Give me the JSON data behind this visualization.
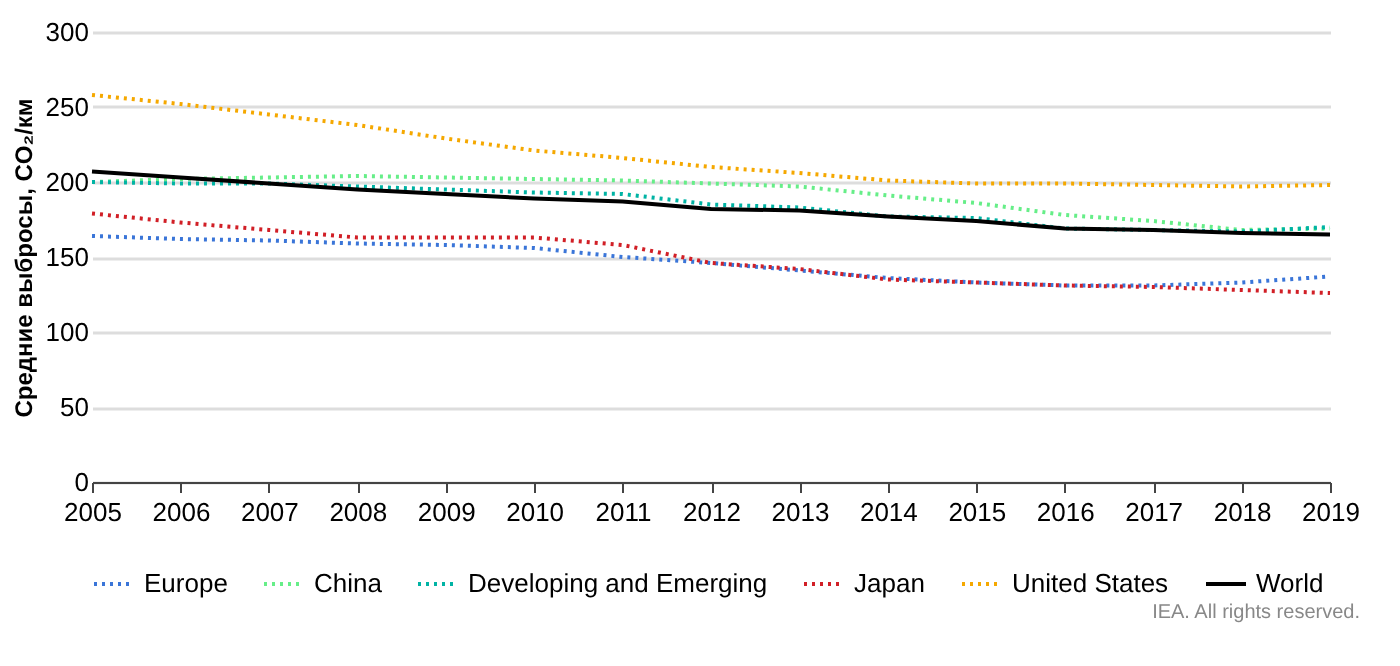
{
  "chart_data": {
    "type": "line",
    "ylabel": "Средние выбросы, CO₂/км",
    "x": [
      2005,
      2006,
      2007,
      2008,
      2009,
      2010,
      2011,
      2012,
      2013,
      2014,
      2015,
      2016,
      2017,
      2018,
      2019
    ],
    "series": [
      {
        "name": "Europe",
        "color": "#3a75d8",
        "line_style": "dotted",
        "values": [
          164,
          162,
          161,
          159,
          158,
          156,
          150,
          146,
          141,
          136,
          133,
          131,
          131,
          133,
          137
        ]
      },
      {
        "name": "China",
        "color": "#66ee88",
        "line_style": "dotted",
        "values": [
          200,
          202,
          203,
          204,
          203,
          202,
          201,
          199,
          197,
          191,
          186,
          178,
          174,
          168,
          169
        ]
      },
      {
        "name": "Developing and Emerging",
        "color": "#00b3a4",
        "line_style": "dotted",
        "values": [
          200,
          199,
          199,
          197,
          195,
          193,
          192,
          185,
          183,
          177,
          176,
          169,
          168,
          167,
          170
        ]
      },
      {
        "name": "Japan",
        "color": "#d11f26",
        "line_style": "dotted",
        "values": [
          179,
          173,
          168,
          163,
          163,
          163,
          158,
          146,
          142,
          135,
          133,
          131,
          130,
          128,
          126
        ]
      },
      {
        "name": "United States",
        "color": "#f5a800",
        "line_style": "dotted",
        "values": [
          258,
          252,
          245,
          238,
          229,
          221,
          216,
          210,
          206,
          201,
          199,
          199,
          198,
          197,
          198
        ]
      },
      {
        "name": "World",
        "color": "#000000",
        "line_style": "solid",
        "values": [
          207,
          203,
          199,
          195,
          192,
          189,
          187,
          182,
          181,
          177,
          174,
          169,
          168,
          166,
          165
        ]
      }
    ],
    "xlim": [
      2005,
      2019
    ],
    "xticks": [
      2005,
      2006,
      2007,
      2008,
      2009,
      2010,
      2011,
      2012,
      2013,
      2014,
      2015,
      2016,
      2017,
      2018,
      2019
    ],
    "ylim": [
      0,
      300
    ],
    "yticks": [
      0,
      50,
      100,
      150,
      200,
      250,
      300
    ],
    "grid": "y",
    "legend": "bottom",
    "marker": "none",
    "annotations": [
      "IEA. All rights reserved."
    ]
  }
}
